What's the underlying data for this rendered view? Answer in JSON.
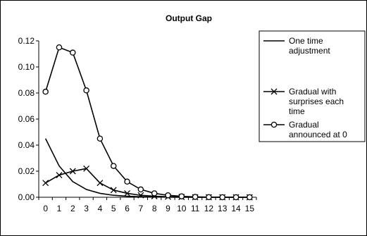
{
  "chart_data": {
    "type": "line",
    "title": "Output Gap",
    "xlabel": "",
    "ylabel": "",
    "x": [
      0,
      1,
      2,
      3,
      4,
      5,
      6,
      7,
      8,
      9,
      10,
      11,
      12,
      13,
      14,
      15
    ],
    "ylim": [
      0,
      0.12
    ],
    "yticks": [
      "0.00",
      "0.02",
      "0.04",
      "0.06",
      "0.08",
      "0.10",
      "0.12"
    ],
    "grid": false,
    "legend_position": "right",
    "series": [
      {
        "name": "One time adjustment",
        "marker": "none",
        "values": [
          0.045,
          0.024,
          0.012,
          0.006,
          0.003,
          0.0015,
          0.0008,
          0.0004,
          0.0002,
          0.0001,
          0.0,
          0.0,
          0.0,
          0.0,
          0.0,
          0.0
        ]
      },
      {
        "name": "Gradual with surprises each time",
        "marker": "x",
        "values": [
          0.011,
          0.017,
          0.02,
          0.022,
          0.011,
          0.0055,
          0.003,
          0.0015,
          0.0008,
          0.0004,
          0.0002,
          0.0,
          0.0,
          0.0,
          0.0,
          0.0
        ]
      },
      {
        "name": "Gradual announced at 0",
        "marker": "circle",
        "values": [
          0.081,
          0.115,
          0.111,
          0.082,
          0.045,
          0.024,
          0.012,
          0.006,
          0.003,
          0.0015,
          0.0007,
          0.0003,
          0.0001,
          0.0,
          0.0,
          0.0
        ]
      }
    ],
    "legend_lines": [
      [
        "One time",
        "adjustment"
      ],
      [
        "Gradual with",
        "surprises each",
        "time"
      ],
      [
        "Gradual",
        "announced at 0"
      ]
    ]
  }
}
